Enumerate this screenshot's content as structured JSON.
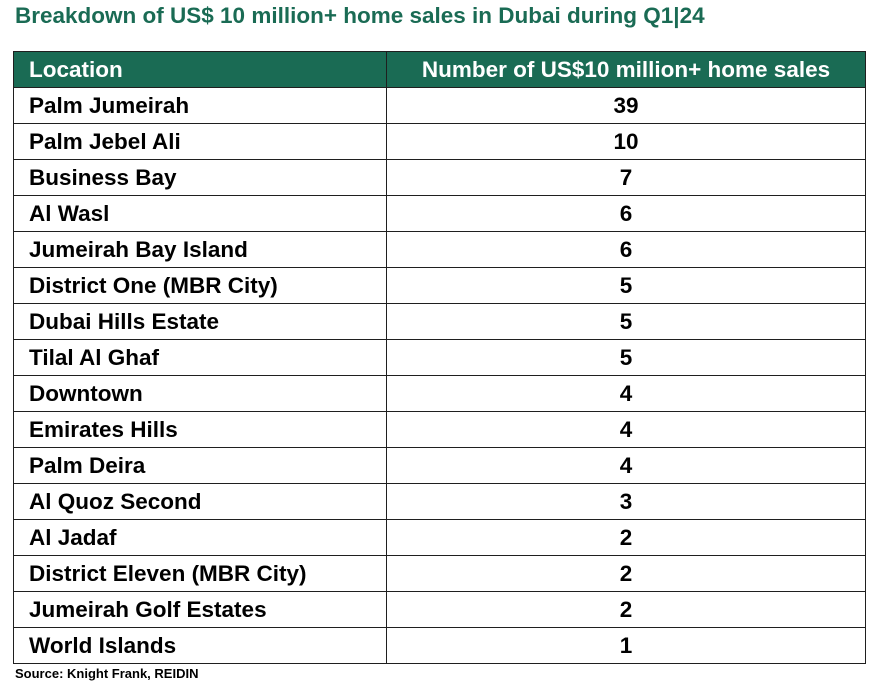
{
  "chart_data": {
    "type": "table",
    "title": "Breakdown of US$ 10 million+ home sales in Dubai during Q1|24",
    "columns": [
      "Location",
      "Number of US$10 million+ home sales"
    ],
    "rows": [
      {
        "location": "Palm Jumeirah",
        "sales": 39
      },
      {
        "location": "Palm Jebel Ali",
        "sales": 10
      },
      {
        "location": "Business Bay",
        "sales": 7
      },
      {
        "location": "Al Wasl",
        "sales": 6
      },
      {
        "location": "Jumeirah Bay Island",
        "sales": 6
      },
      {
        "location": "District One (MBR City)",
        "sales": 5
      },
      {
        "location": "Dubai Hills Estate",
        "sales": 5
      },
      {
        "location": "Tilal Al Ghaf",
        "sales": 5
      },
      {
        "location": "Downtown",
        "sales": 4
      },
      {
        "location": "Emirates Hills",
        "sales": 4
      },
      {
        "location": "Palm Deira",
        "sales": 4
      },
      {
        "location": "Al Quoz Second",
        "sales": 3
      },
      {
        "location": "Al Jadaf",
        "sales": 2
      },
      {
        "location": "District Eleven (MBR City)",
        "sales": 2
      },
      {
        "location": "Jumeirah Golf Estates",
        "sales": 2
      },
      {
        "location": "World Islands",
        "sales": 1
      }
    ],
    "source": "Source: Knight Frank, REIDIN"
  },
  "colors": {
    "accent": "#1a6b54",
    "header_text": "#ffffff",
    "border": "#1f1f1f"
  }
}
